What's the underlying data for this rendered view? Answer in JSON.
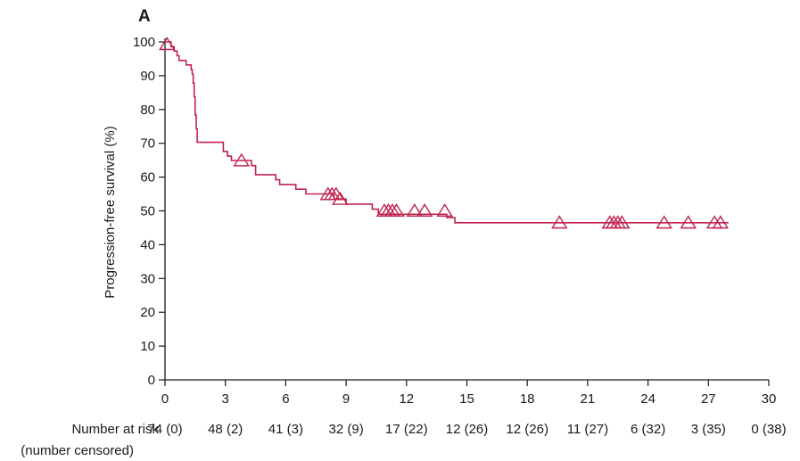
{
  "chart_data": {
    "type": "line",
    "panel_label": "A",
    "title": "",
    "xlabel": "",
    "ylabel": "Progression-free survival (%)",
    "xlim": [
      0,
      30
    ],
    "ylim": [
      0,
      100
    ],
    "x_ticks": [
      0,
      3,
      6,
      9,
      12,
      15,
      18,
      21,
      24,
      27,
      30
    ],
    "y_ticks": [
      0,
      10,
      20,
      30,
      40,
      50,
      60,
      70,
      80,
      90,
      100
    ],
    "grid": false,
    "line_color": "#c0244e",
    "series": [
      {
        "step_points": [
          [
            0,
            100
          ],
          [
            0.3,
            98.6
          ],
          [
            0.45,
            97.3
          ],
          [
            0.6,
            95.9
          ],
          [
            0.7,
            94.5
          ],
          [
            1.0,
            94.5
          ],
          [
            1.05,
            93.2
          ],
          [
            1.3,
            91.8
          ],
          [
            1.35,
            90.5
          ],
          [
            1.4,
            87.8
          ],
          [
            1.45,
            83.8
          ],
          [
            1.5,
            78.4
          ],
          [
            1.55,
            74.3
          ],
          [
            1.6,
            70.3
          ],
          [
            2.8,
            70.3
          ],
          [
            2.9,
            67.6
          ],
          [
            3.1,
            66.2
          ],
          [
            3.3,
            64.9
          ],
          [
            4.3,
            63.4
          ],
          [
            4.5,
            60.7
          ],
          [
            5.5,
            59.2
          ],
          [
            5.7,
            57.8
          ],
          [
            6.5,
            56.4
          ],
          [
            7.0,
            55.0
          ],
          [
            8.4,
            53.5
          ],
          [
            9.0,
            52.0
          ],
          [
            10.3,
            50.5
          ],
          [
            10.6,
            49.0
          ],
          [
            14.0,
            48.0
          ],
          [
            14.4,
            46.5
          ],
          [
            28,
            46.5
          ]
        ],
        "censor_points": [
          [
            0.1,
            99.3
          ],
          [
            3.8,
            64.9
          ],
          [
            8.1,
            54.9
          ],
          [
            8.3,
            54.9
          ],
          [
            8.5,
            54.9
          ],
          [
            8.7,
            53.5
          ],
          [
            10.9,
            50.0
          ],
          [
            11.1,
            50.0
          ],
          [
            11.3,
            50.0
          ],
          [
            11.5,
            50.0
          ],
          [
            12.4,
            50.0
          ],
          [
            12.9,
            50.0
          ],
          [
            13.9,
            50.0
          ],
          [
            19.6,
            46.5
          ],
          [
            22.1,
            46.5
          ],
          [
            22.3,
            46.5
          ],
          [
            22.5,
            46.5
          ],
          [
            22.7,
            46.5
          ],
          [
            24.8,
            46.5
          ],
          [
            26.0,
            46.5
          ],
          [
            27.3,
            46.5
          ],
          [
            27.6,
            46.5
          ]
        ]
      }
    ],
    "number_at_risk": {
      "label_line1": "Number at risk",
      "label_line2": "(number censored)",
      "times": [
        0,
        3,
        6,
        9,
        12,
        15,
        18,
        21,
        24,
        27,
        30
      ],
      "values": [
        "74 (0)",
        "48 (2)",
        "41 (3)",
        "32 (9)",
        "17 (22)",
        "12 (26)",
        "12 (26)",
        "11 (27)",
        "6 (32)",
        "3 (35)",
        "0 (38)"
      ]
    }
  }
}
